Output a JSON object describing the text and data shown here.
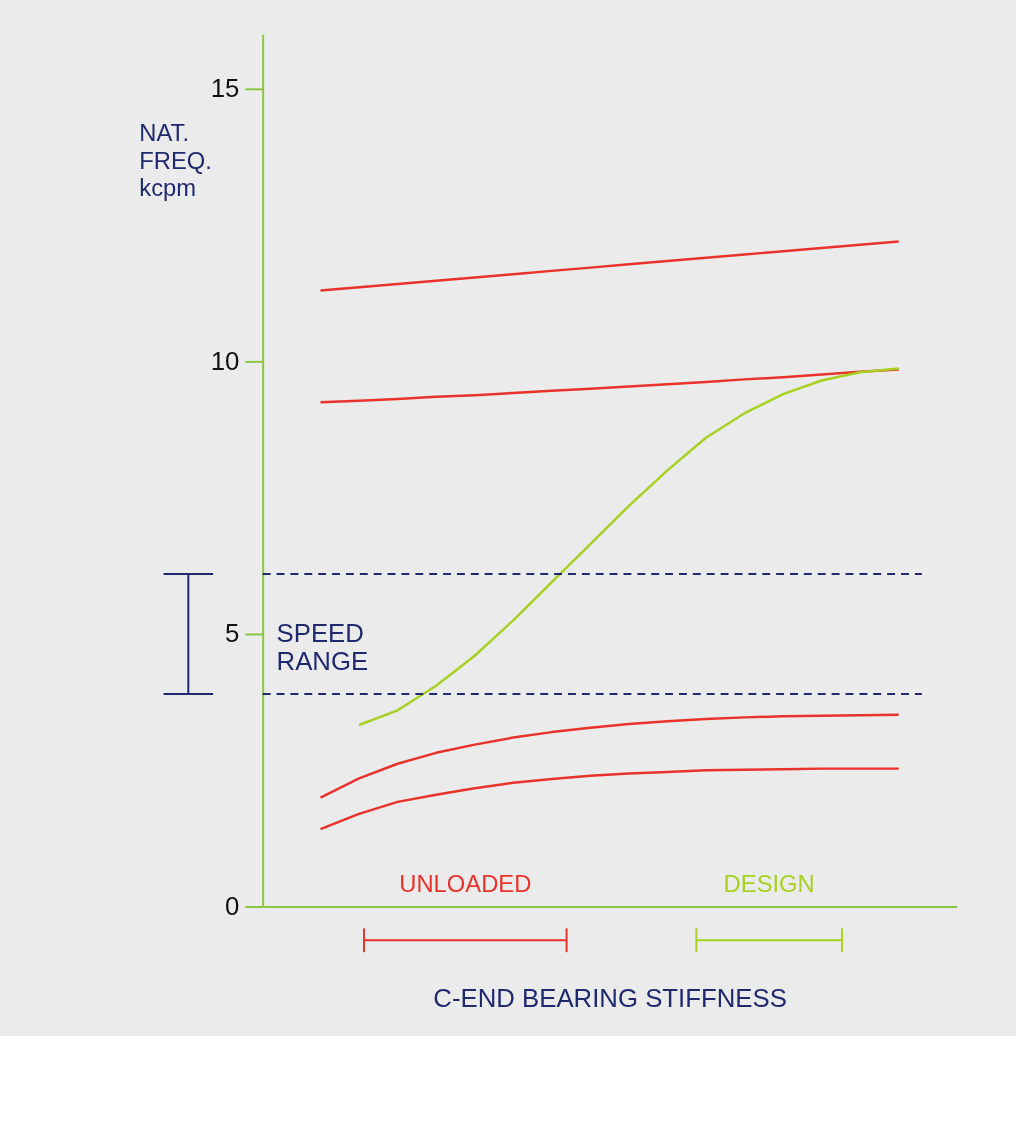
{
  "chart_data": {
    "type": "line",
    "ylabel": "NAT. FREQ. kcpm",
    "xlabel": "C-END BEARING STIFFNESS",
    "categories": [
      null,
      null,
      null,
      null,
      null,
      null,
      null,
      null,
      null,
      null,
      null,
      null,
      null,
      null,
      null,
      null,
      null,
      null
    ],
    "ylim": [
      0,
      16
    ],
    "yticks": [
      0,
      5,
      10,
      15
    ],
    "tick_labels": "y",
    "grid": false,
    "series": [
      {
        "color": "#e8322a",
        "values": [
          null,
          11.3,
          11.36,
          11.42,
          11.48,
          11.54,
          11.6,
          11.66,
          11.72,
          11.78,
          11.84,
          11.9,
          11.96,
          12.02,
          12.08,
          12.14,
          12.2,
          null
        ]
      },
      {
        "color": "#e8322a",
        "values": [
          null,
          9.25,
          9.28,
          9.31,
          9.35,
          9.38,
          9.42,
          9.46,
          9.5,
          9.54,
          9.58,
          9.62,
          9.67,
          9.71,
          9.76,
          9.81,
          9.85,
          null
        ]
      },
      {
        "color": "#a8d020",
        "values": [
          null,
          null,
          3.33,
          3.6,
          4.05,
          4.6,
          5.25,
          5.95,
          6.65,
          7.35,
          8.0,
          8.6,
          9.05,
          9.4,
          9.65,
          9.8,
          9.87,
          null
        ]
      },
      {
        "color": "#e8322a",
        "values": [
          null,
          2.0,
          2.35,
          2.62,
          2.82,
          2.97,
          3.1,
          3.2,
          3.28,
          3.35,
          3.4,
          3.44,
          3.47,
          3.49,
          3.5,
          3.51,
          3.52,
          null
        ]
      },
      {
        "color": "#e8322a",
        "values": [
          null,
          1.42,
          1.7,
          1.92,
          2.05,
          2.17,
          2.27,
          2.34,
          2.4,
          2.44,
          2.47,
          2.5,
          2.51,
          2.52,
          2.53,
          2.53,
          2.53,
          null
        ]
      }
    ],
    "ref_lines": [
      {
        "axis": "y",
        "value": 6.1,
        "color": "#1f2a6e",
        "line_style": "dashed"
      },
      {
        "axis": "y",
        "value": 3.9,
        "color": "#1f2a6e",
        "line_style": "dashed"
      }
    ],
    "annotations": [
      "SPEED RANGE",
      "UNLOADED",
      "DESIGN"
    ]
  }
}
